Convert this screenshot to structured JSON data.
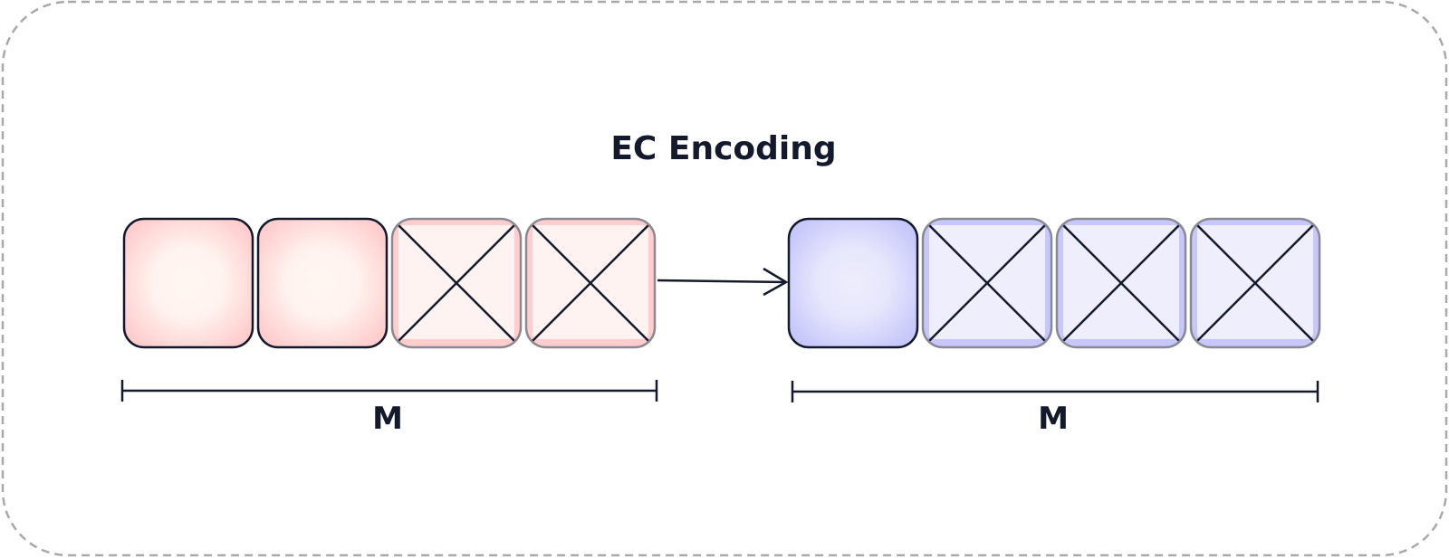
{
  "title": "EC Encoding",
  "left_group": {
    "span_label": "M",
    "blocks": [
      {
        "state": "filled"
      },
      {
        "state": "filled"
      },
      {
        "state": "empty"
      },
      {
        "state": "empty"
      }
    ]
  },
  "right_group": {
    "span_label": "M",
    "blocks": [
      {
        "state": "filled"
      },
      {
        "state": "empty"
      },
      {
        "state": "empty"
      },
      {
        "state": "empty"
      }
    ]
  },
  "arrow": {
    "direction": "left-to-right"
  },
  "colors": {
    "left_fill_edge": "#ffcdcd",
    "left_fill_center": "#fff6f2",
    "right_fill_edge": "#c7c7fb",
    "right_fill_center": "#ededfc",
    "stroke_dark": "#141a2b",
    "stroke_muted": "#8a8a92",
    "frame_dash": "#a9a9a9"
  },
  "icons": {
    "empty_block": "cross-mark-icon",
    "arrow": "arrow-right-icon"
  }
}
